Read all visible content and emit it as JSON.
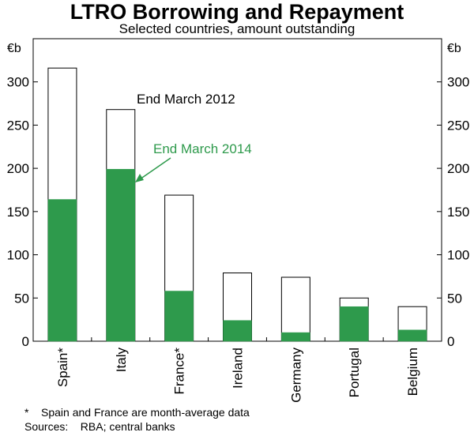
{
  "chart_data": {
    "type": "bar",
    "title": "LTRO Borrowing and Repayment",
    "subtitle": "Selected countries, amount outstanding",
    "unit_left": "€b",
    "unit_right": "€b",
    "categories": [
      "Spain*",
      "Italy",
      "France*",
      "Ireland",
      "Germany",
      "Portugal",
      "Belgium"
    ],
    "series": [
      {
        "name": "End March 2012",
        "values": [
          316,
          268,
          169,
          79,
          74,
          50,
          40
        ],
        "color": "#ffffff"
      },
      {
        "name": "End March 2014",
        "values": [
          164,
          199,
          58,
          24,
          10,
          40,
          13
        ],
        "color": "#2e9a4c"
      }
    ],
    "yticks": [
      0,
      50,
      100,
      150,
      200,
      250,
      300
    ],
    "ylim": [
      0,
      350
    ],
    "annotations": {
      "label_2012": "End March 2012",
      "label_2014": "End March 2014"
    }
  },
  "footnotes": {
    "note": "*    Spain and France are month-average data",
    "sources": "Sources:    RBA; central banks"
  }
}
